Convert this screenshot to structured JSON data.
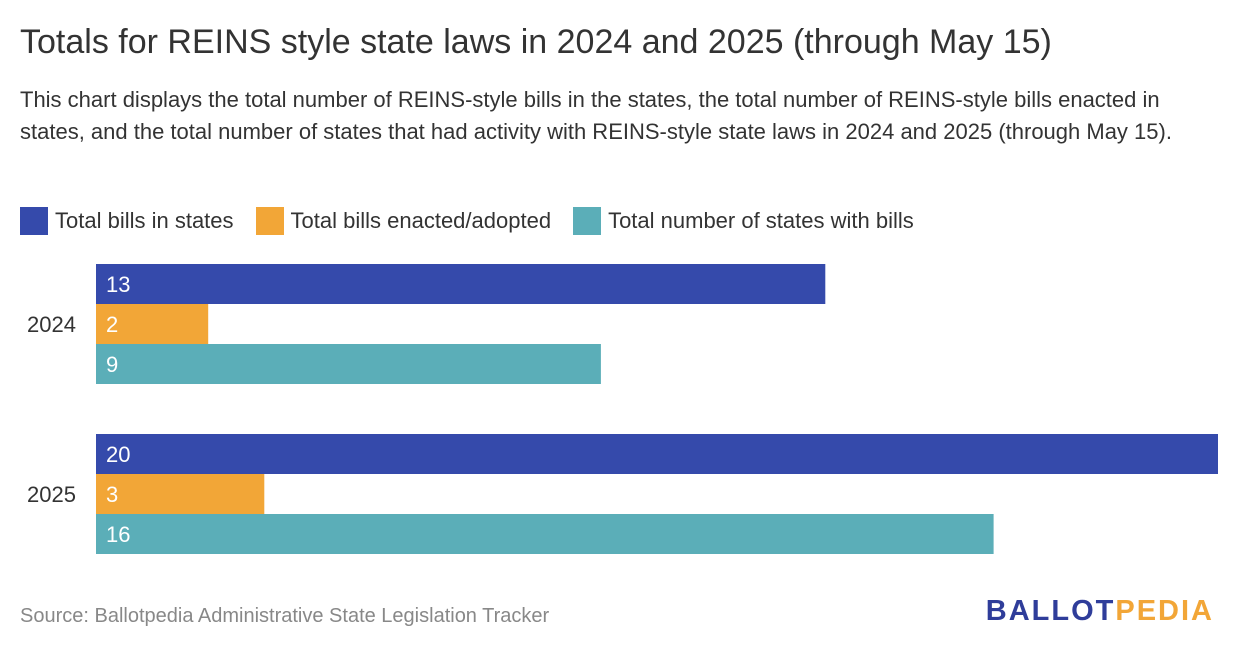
{
  "title": "Totals for REINS style state laws in 2024 and 2025 (through May 15)",
  "subtitle": "This chart displays the total number of REINS-style bills in the states, the total number of REINS-style bills enacted in states, and the total number of states that had activity with REINS-style state laws in 2024 and 2025 (through May 15).",
  "source": "Source: Ballotpedia Administrative State Legislation Tracker",
  "logo": {
    "part_a": "BALLOT",
    "part_b": "PEDIA"
  },
  "colors": {
    "bills": "#354aab",
    "enacted": "#f2a637",
    "states": "#5baeb8",
    "text": "#333333",
    "source": "#888888"
  },
  "chart_data": {
    "type": "bar",
    "orientation": "horizontal",
    "title": "Totals for REINS style state laws in 2024 and 2025 (through May 15)",
    "categories": [
      "2024",
      "2025"
    ],
    "series": [
      {
        "name": "Total bills in states",
        "values": [
          13,
          20
        ],
        "color": "#354aab"
      },
      {
        "name": "Total bills enacted/adopted",
        "values": [
          2,
          3
        ],
        "color": "#f2a637"
      },
      {
        "name": "Total number of states with bills",
        "values": [
          9,
          16
        ],
        "color": "#5baeb8"
      }
    ],
    "xlim": [
      0,
      20
    ],
    "grid": false,
    "legend": "top-left",
    "data_labels": "inside-start"
  }
}
